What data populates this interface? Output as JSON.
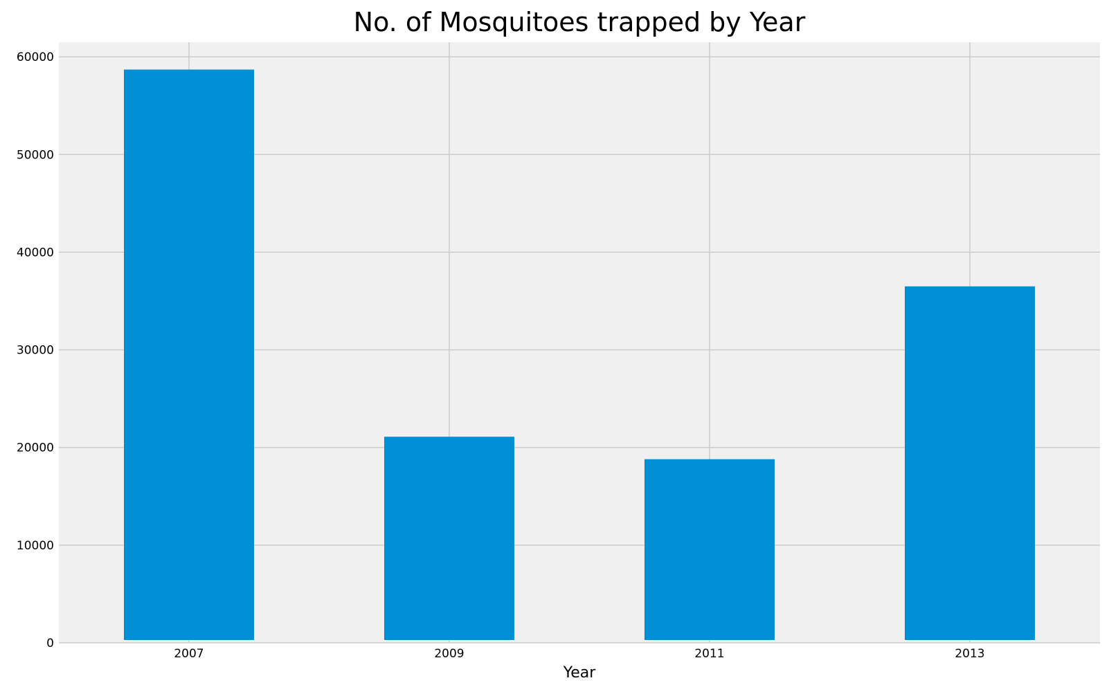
{
  "chart_data": {
    "type": "bar",
    "title": "No. of Mosquitoes trapped by Year",
    "xlabel": "Year",
    "ylabel": "",
    "categories": [
      "2007",
      "2009",
      "2011",
      "2013"
    ],
    "values": [
      58700,
      21100,
      18800,
      36500
    ],
    "ylim": [
      0,
      61500
    ],
    "yticks": [
      0,
      10000,
      20000,
      30000,
      40000,
      50000,
      60000
    ],
    "grid": true,
    "legend": "none",
    "colors": {
      "bar": "#008fd5",
      "plot_background": "#f0f0f0",
      "grid": "#cbcbcb",
      "figure_background": "#ffffff"
    }
  }
}
